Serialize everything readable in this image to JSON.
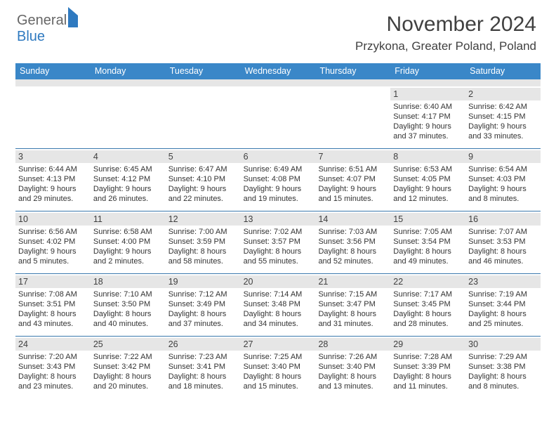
{
  "brand": {
    "part1": "General",
    "part2": "Blue"
  },
  "title": "November 2024",
  "location": "Przykona, Greater Poland, Poland",
  "header_bg": "#3a87c8",
  "daynum_bg": "#e6e6e6",
  "week_border": "#3a78ad",
  "dow": [
    "Sunday",
    "Monday",
    "Tuesday",
    "Wednesday",
    "Thursday",
    "Friday",
    "Saturday"
  ],
  "weeks": [
    [
      null,
      null,
      null,
      null,
      null,
      {
        "n": "1",
        "sr": "6:40 AM",
        "ss": "4:17 PM",
        "dl": "9 hours",
        "dl2": "and 37 minutes."
      },
      {
        "n": "2",
        "sr": "6:42 AM",
        "ss": "4:15 PM",
        "dl": "9 hours",
        "dl2": "and 33 minutes."
      }
    ],
    [
      {
        "n": "3",
        "sr": "6:44 AM",
        "ss": "4:13 PM",
        "dl": "9 hours",
        "dl2": "and 29 minutes."
      },
      {
        "n": "4",
        "sr": "6:45 AM",
        "ss": "4:12 PM",
        "dl": "9 hours",
        "dl2": "and 26 minutes."
      },
      {
        "n": "5",
        "sr": "6:47 AM",
        "ss": "4:10 PM",
        "dl": "9 hours",
        "dl2": "and 22 minutes."
      },
      {
        "n": "6",
        "sr": "6:49 AM",
        "ss": "4:08 PM",
        "dl": "9 hours",
        "dl2": "and 19 minutes."
      },
      {
        "n": "7",
        "sr": "6:51 AM",
        "ss": "4:07 PM",
        "dl": "9 hours",
        "dl2": "and 15 minutes."
      },
      {
        "n": "8",
        "sr": "6:53 AM",
        "ss": "4:05 PM",
        "dl": "9 hours",
        "dl2": "and 12 minutes."
      },
      {
        "n": "9",
        "sr": "6:54 AM",
        "ss": "4:03 PM",
        "dl": "9 hours",
        "dl2": "and 8 minutes."
      }
    ],
    [
      {
        "n": "10",
        "sr": "6:56 AM",
        "ss": "4:02 PM",
        "dl": "9 hours",
        "dl2": "and 5 minutes."
      },
      {
        "n": "11",
        "sr": "6:58 AM",
        "ss": "4:00 PM",
        "dl": "9 hours",
        "dl2": "and 2 minutes."
      },
      {
        "n": "12",
        "sr": "7:00 AM",
        "ss": "3:59 PM",
        "dl": "8 hours",
        "dl2": "and 58 minutes."
      },
      {
        "n": "13",
        "sr": "7:02 AM",
        "ss": "3:57 PM",
        "dl": "8 hours",
        "dl2": "and 55 minutes."
      },
      {
        "n": "14",
        "sr": "7:03 AM",
        "ss": "3:56 PM",
        "dl": "8 hours",
        "dl2": "and 52 minutes."
      },
      {
        "n": "15",
        "sr": "7:05 AM",
        "ss": "3:54 PM",
        "dl": "8 hours",
        "dl2": "and 49 minutes."
      },
      {
        "n": "16",
        "sr": "7:07 AM",
        "ss": "3:53 PM",
        "dl": "8 hours",
        "dl2": "and 46 minutes."
      }
    ],
    [
      {
        "n": "17",
        "sr": "7:08 AM",
        "ss": "3:51 PM",
        "dl": "8 hours",
        "dl2": "and 43 minutes."
      },
      {
        "n": "18",
        "sr": "7:10 AM",
        "ss": "3:50 PM",
        "dl": "8 hours",
        "dl2": "and 40 minutes."
      },
      {
        "n": "19",
        "sr": "7:12 AM",
        "ss": "3:49 PM",
        "dl": "8 hours",
        "dl2": "and 37 minutes."
      },
      {
        "n": "20",
        "sr": "7:14 AM",
        "ss": "3:48 PM",
        "dl": "8 hours",
        "dl2": "and 34 minutes."
      },
      {
        "n": "21",
        "sr": "7:15 AM",
        "ss": "3:47 PM",
        "dl": "8 hours",
        "dl2": "and 31 minutes."
      },
      {
        "n": "22",
        "sr": "7:17 AM",
        "ss": "3:45 PM",
        "dl": "8 hours",
        "dl2": "and 28 minutes."
      },
      {
        "n": "23",
        "sr": "7:19 AM",
        "ss": "3:44 PM",
        "dl": "8 hours",
        "dl2": "and 25 minutes."
      }
    ],
    [
      {
        "n": "24",
        "sr": "7:20 AM",
        "ss": "3:43 PM",
        "dl": "8 hours",
        "dl2": "and 23 minutes."
      },
      {
        "n": "25",
        "sr": "7:22 AM",
        "ss": "3:42 PM",
        "dl": "8 hours",
        "dl2": "and 20 minutes."
      },
      {
        "n": "26",
        "sr": "7:23 AM",
        "ss": "3:41 PM",
        "dl": "8 hours",
        "dl2": "and 18 minutes."
      },
      {
        "n": "27",
        "sr": "7:25 AM",
        "ss": "3:40 PM",
        "dl": "8 hours",
        "dl2": "and 15 minutes."
      },
      {
        "n": "28",
        "sr": "7:26 AM",
        "ss": "3:40 PM",
        "dl": "8 hours",
        "dl2": "and 13 minutes."
      },
      {
        "n": "29",
        "sr": "7:28 AM",
        "ss": "3:39 PM",
        "dl": "8 hours",
        "dl2": "and 11 minutes."
      },
      {
        "n": "30",
        "sr": "7:29 AM",
        "ss": "3:38 PM",
        "dl": "8 hours",
        "dl2": "and 8 minutes."
      }
    ]
  ]
}
